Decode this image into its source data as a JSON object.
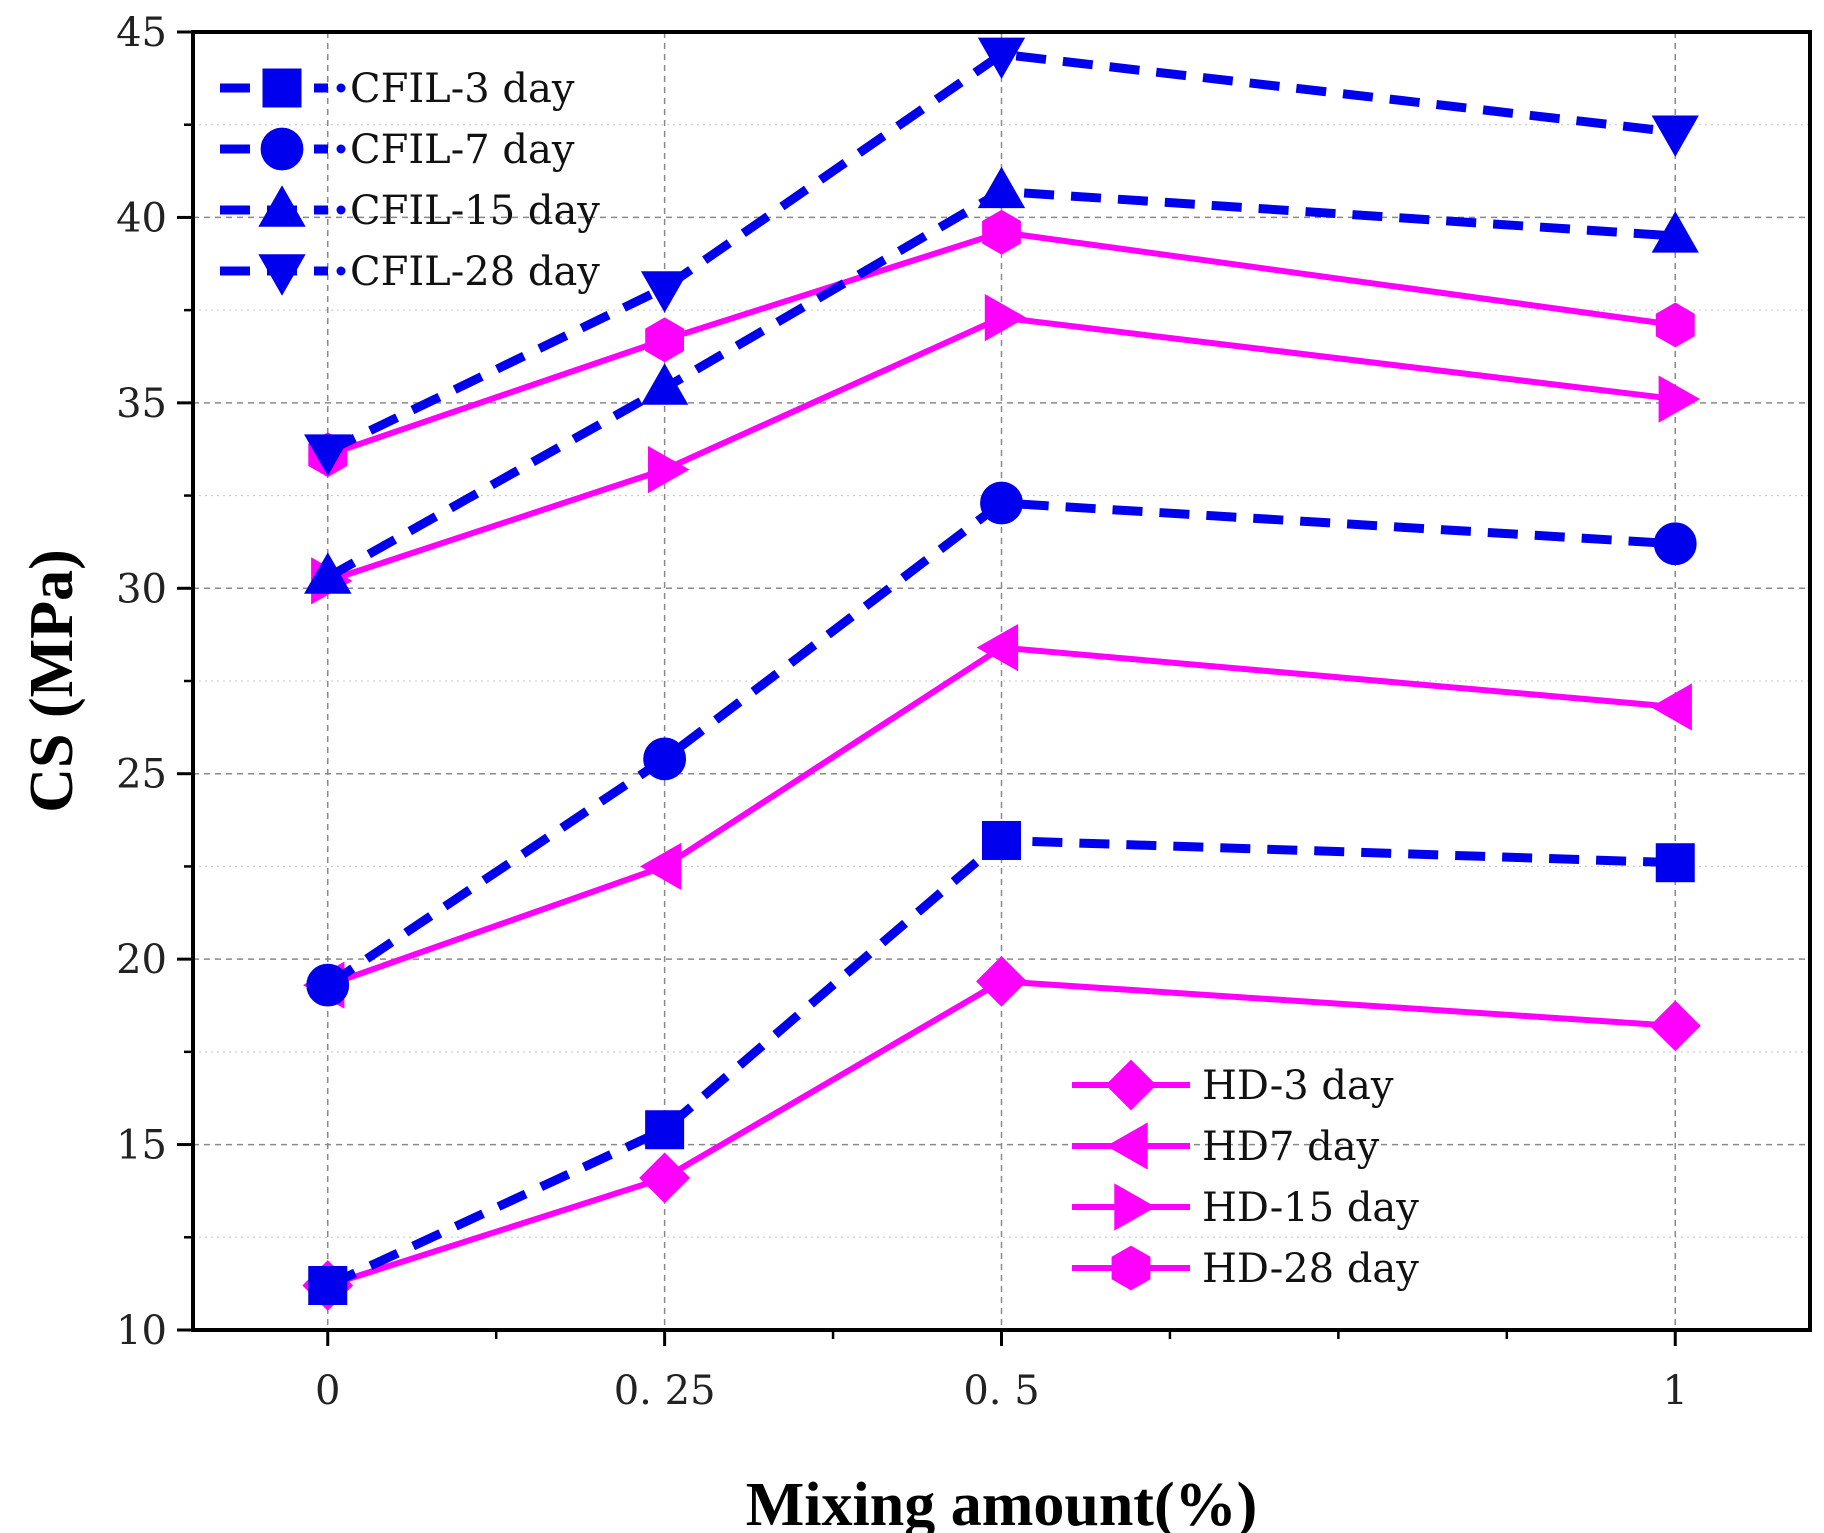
{
  "chart_data": {
    "type": "line",
    "title": "",
    "xlabel": "Mixing amount(%)",
    "ylabel": "CS (MPa)",
    "x_ticks": [
      "0",
      "0. 25",
      "0. 5",
      "1"
    ],
    "x_tick_values": [
      0,
      0.25,
      0.5,
      1
    ],
    "x": [
      0,
      0.25,
      0.5,
      1
    ],
    "xlim": [
      -0.1,
      1.1
    ],
    "ylim": [
      10,
      45
    ],
    "y_ticks": [
      10,
      15,
      20,
      25,
      30,
      35,
      40,
      45
    ],
    "grid": true,
    "legends": [
      {
        "placement": "top-left",
        "entries": [
          "CFIL-3 day",
          "CFIL-7 day",
          "CFIL-15 day",
          "CFIL-28 day"
        ]
      },
      {
        "placement": "bottom-right",
        "entries": [
          "HD-3 day",
          "HD7 day",
          "HD-15 day",
          "HD-28 day"
        ]
      }
    ],
    "series": [
      {
        "name": "CFIL-3 day",
        "values": [
          11.2,
          15.4,
          23.2,
          22.6
        ],
        "color": "#0000ee",
        "marker": "square",
        "dash": true
      },
      {
        "name": "CFIL-7 day",
        "values": [
          19.3,
          25.4,
          32.3,
          31.2
        ],
        "color": "#0000ee",
        "marker": "circle",
        "dash": true
      },
      {
        "name": "CFIL-15 day",
        "values": [
          30.3,
          35.4,
          40.7,
          39.5
        ],
        "color": "#0000ee",
        "marker": "triangle-up",
        "dash": true
      },
      {
        "name": "CFIL-28 day",
        "values": [
          33.7,
          38.1,
          44.4,
          42.3
        ],
        "color": "#0000ee",
        "marker": "triangle-down",
        "dash": true
      },
      {
        "name": "HD-3 day",
        "values": [
          11.2,
          14.1,
          19.4,
          18.2
        ],
        "color": "#ff00ff",
        "marker": "diamond",
        "dash": false
      },
      {
        "name": "HD7 day",
        "values": [
          19.3,
          22.5,
          28.4,
          26.8
        ],
        "color": "#ff00ff",
        "marker": "triangle-left",
        "dash": false
      },
      {
        "name": "HD-15 day",
        "values": [
          30.2,
          33.2,
          37.3,
          35.1
        ],
        "color": "#ff00ff",
        "marker": "triangle-right",
        "dash": false
      },
      {
        "name": "HD-28 day",
        "values": [
          33.6,
          36.7,
          39.6,
          37.1
        ],
        "color": "#ff00ff",
        "marker": "hexagon",
        "dash": false
      }
    ]
  }
}
